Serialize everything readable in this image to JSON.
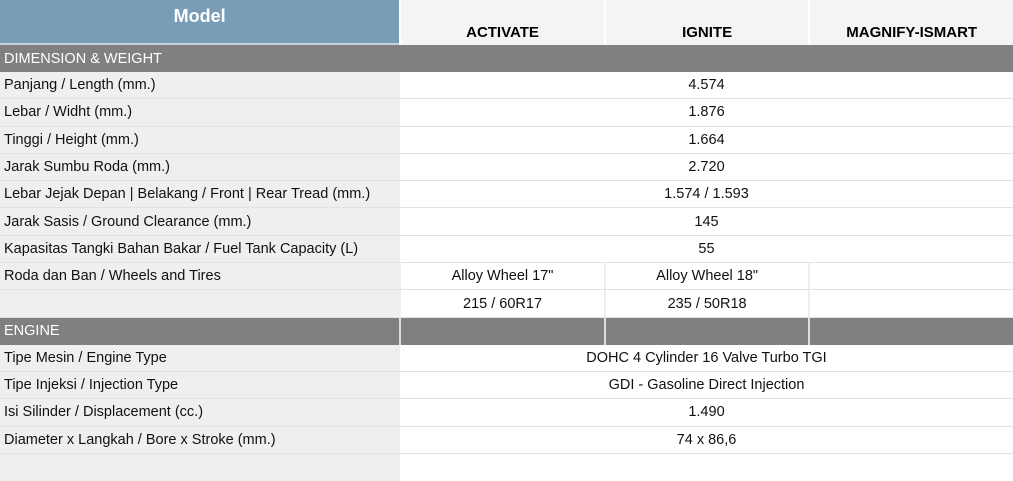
{
  "header": {
    "model": "Model",
    "columns": [
      "ACTIVATE",
      "IGNITE",
      "MAGNIFY-ISMART"
    ]
  },
  "sections": [
    {
      "title": "DIMENSION & WEIGHT",
      "rows": [
        {
          "label": "Panjang / Length (mm.)",
          "value": "4.574"
        },
        {
          "label": "Lebar / Widht (mm.)",
          "value": "1.876"
        },
        {
          "label": "Tinggi / Height (mm.)",
          "value": "1.664"
        },
        {
          "label": "Jarak Sumbu Roda (mm.)",
          "value": "2.720"
        },
        {
          "label": "Lebar Jejak Depan | Belakang / Front | Rear Tread (mm.)",
          "value": "1.574 / 1.593"
        },
        {
          "label": "Jarak Sasis / Ground Clearance (mm.)",
          "value": "145"
        },
        {
          "label": "Kapasitas Tangki Bahan Bakar / Fuel Tank Capacity (L)",
          "value": "55"
        }
      ],
      "wheels": {
        "label": "Roda dan Ban / Wheels and Tires",
        "rows": [
          [
            "Alloy Wheel 17\"",
            "Alloy Wheel 18\"",
            ""
          ],
          [
            "215 / 60R17",
            "235 / 50R18",
            ""
          ]
        ]
      }
    },
    {
      "title": "ENGINE",
      "rows": [
        {
          "label": "Tipe Mesin / Engine Type",
          "value": "DOHC 4 Cylinder 16 Valve Turbo TGI"
        },
        {
          "label": "Tipe Injeksi / Injection Type",
          "value": "GDI - Gasoline Direct Injection"
        },
        {
          "label": "Isi Silinder / Displacement (cc.)",
          "value": "1.490"
        },
        {
          "label": "Diameter x Langkah / Bore x Stroke (mm.)",
          "value": "74 x 86,6"
        }
      ]
    }
  ]
}
